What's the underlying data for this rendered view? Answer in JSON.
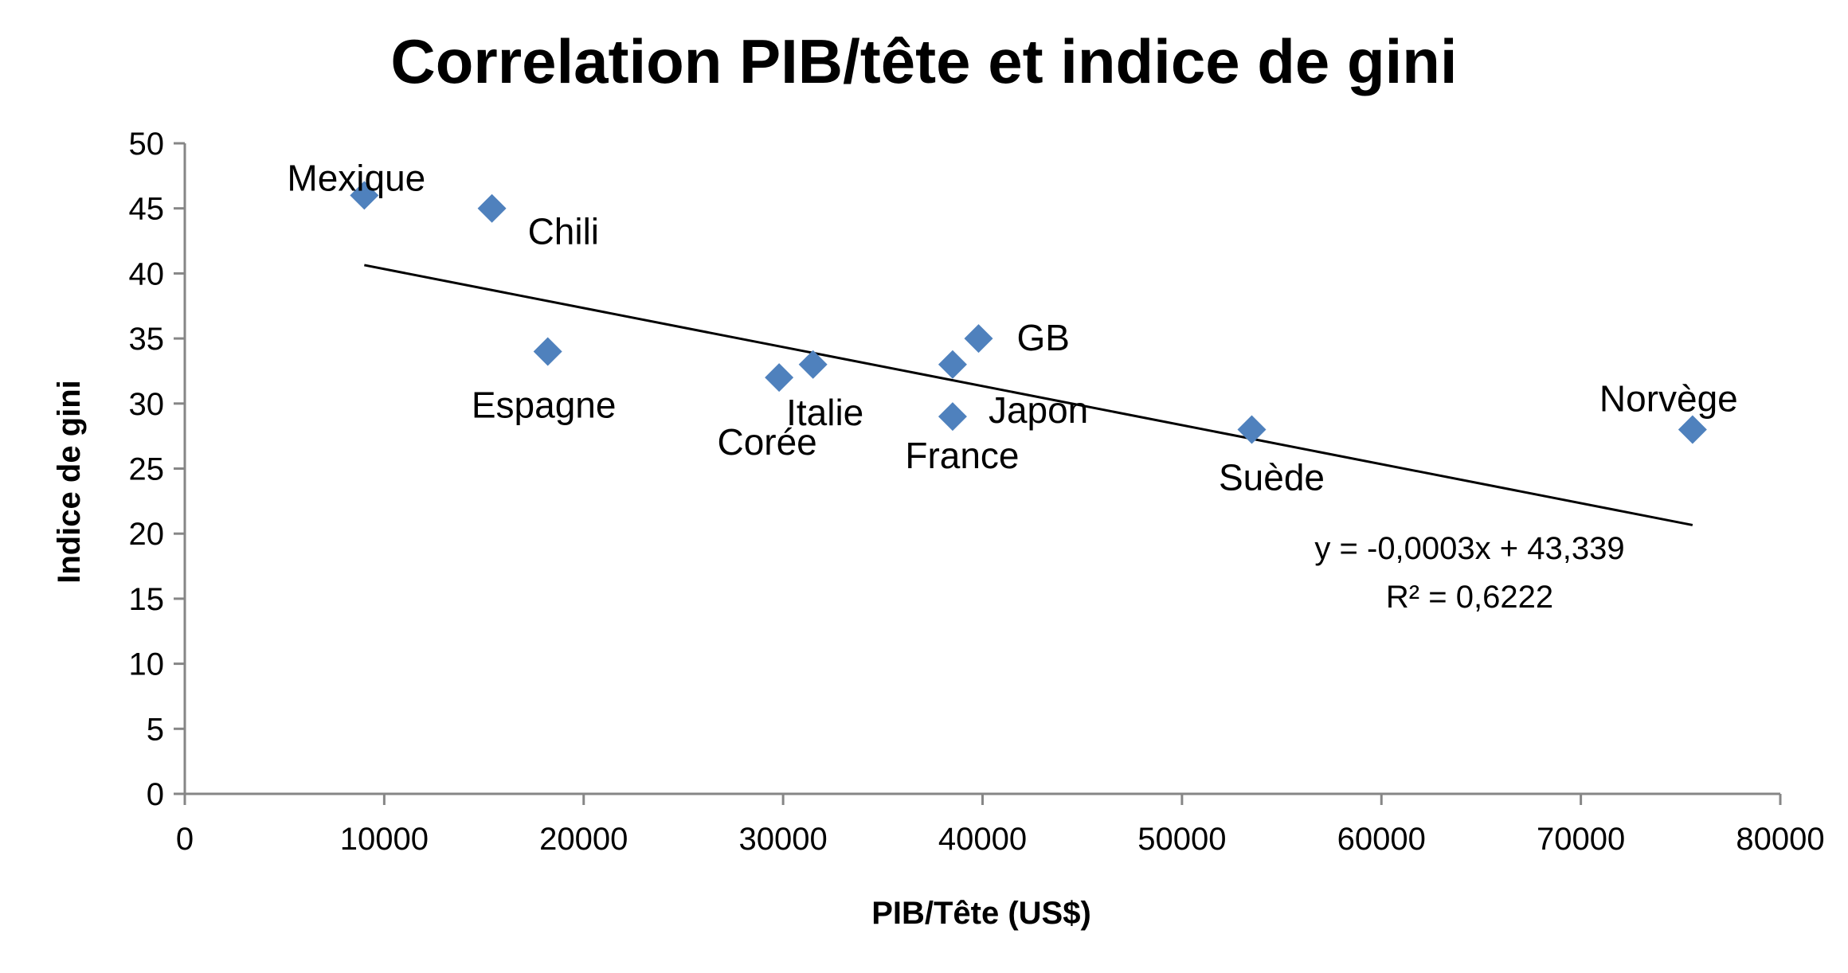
{
  "chart_data": {
    "type": "scatter",
    "title": "Correlation PIB/tête et indice de gini",
    "xlabel": "PIB/Tête (US$)",
    "ylabel": "Indice de gini",
    "xlim": [
      0,
      80000
    ],
    "ylim": [
      0,
      50
    ],
    "x_ticks": [
      0,
      10000,
      20000,
      30000,
      40000,
      50000,
      60000,
      70000,
      80000
    ],
    "y_ticks": [
      0,
      5,
      10,
      15,
      20,
      25,
      30,
      35,
      40,
      45,
      50
    ],
    "grid": false,
    "marker_color": "#4F81BD",
    "points": [
      {
        "label": "Mexique",
        "x": 9000,
        "y": 46
      },
      {
        "label": "Chili",
        "x": 15400,
        "y": 45
      },
      {
        "label": "Espagne",
        "x": 18200,
        "y": 34
      },
      {
        "label": "Corée",
        "x": 29800,
        "y": 32
      },
      {
        "label": "Italie",
        "x": 31500,
        "y": 33
      },
      {
        "label": "Japon",
        "x": 38500,
        "y": 33
      },
      {
        "label": "France",
        "x": 38500,
        "y": 29
      },
      {
        "label": "GB",
        "x": 39800,
        "y": 35
      },
      {
        "label": "Suède",
        "x": 53500,
        "y": 28
      },
      {
        "label": "Norvège",
        "x": 75600,
        "y": 28
      }
    ],
    "trendline": {
      "equation": "y = -0,0003x + 43,339",
      "r_squared": "R² = 0,6222",
      "slope": -0.0003,
      "intercept": 43.339,
      "x_range": [
        9000,
        75600
      ]
    }
  }
}
